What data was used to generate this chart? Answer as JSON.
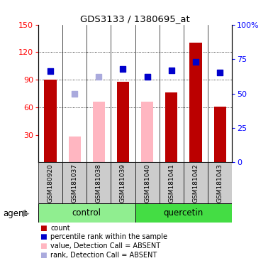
{
  "title": "GDS3133 / 1380695_at",
  "samples": [
    "GSM180920",
    "GSM181037",
    "GSM181038",
    "GSM181039",
    "GSM181040",
    "GSM181041",
    "GSM181042",
    "GSM181043"
  ],
  "groups": [
    {
      "label": "control",
      "indices": [
        0,
        1,
        2,
        3
      ],
      "color": "#90EE90"
    },
    {
      "label": "quercetin",
      "indices": [
        4,
        5,
        6,
        7
      ],
      "color": "#44DD44"
    }
  ],
  "count_values": [
    90,
    null,
    null,
    88,
    null,
    76,
    130,
    61
  ],
  "count_color": "#BB0000",
  "percentile_values": [
    66,
    null,
    null,
    68,
    62,
    67,
    73,
    65
  ],
  "percentile_color": "#0000CC",
  "absent_value_bars": [
    null,
    28,
    66,
    null,
    66,
    null,
    null,
    null
  ],
  "absent_value_color": "#FFB6C1",
  "absent_rank_dots": [
    null,
    50,
    62,
    null,
    62,
    null,
    null,
    null
  ],
  "absent_rank_color": "#AAAADD",
  "ylim_left": [
    0,
    150
  ],
  "ylim_right": [
    0,
    100
  ],
  "yticks_left": [
    30,
    60,
    90,
    120,
    150
  ],
  "yticks_right": [
    0,
    25,
    50,
    75,
    100
  ],
  "yticklabels_right": [
    "0",
    "25",
    "50",
    "75",
    "100%"
  ],
  "bar_width": 0.5,
  "dot_size": 40,
  "background_color": "#FFFFFF",
  "plot_bg_color": "#FFFFFF",
  "sample_box_color": "#CCCCCC",
  "control_color": "#90EE90",
  "quercetin_color": "#44DD44",
  "legend_items": [
    {
      "color": "#BB0000",
      "label": "count"
    },
    {
      "color": "#0000CC",
      "label": "percentile rank within the sample"
    },
    {
      "color": "#FFB6C1",
      "label": "value, Detection Call = ABSENT"
    },
    {
      "color": "#AAAADD",
      "label": "rank, Detection Call = ABSENT"
    }
  ]
}
